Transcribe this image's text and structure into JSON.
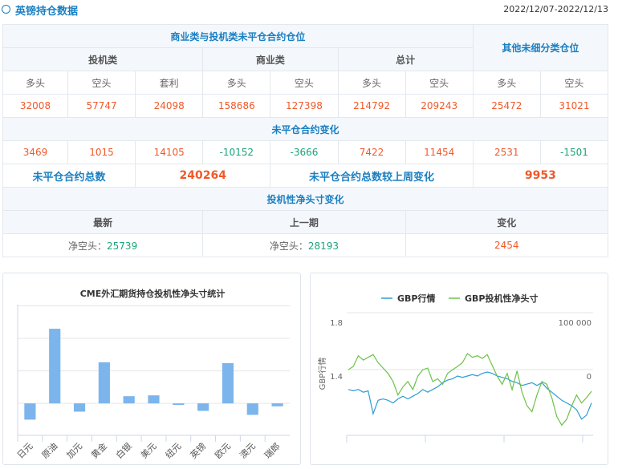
{
  "header": {
    "title": "英镑持仓数据",
    "date_range": "2022/12/07-2022/12/13",
    "icon": "circle-icon"
  },
  "table": {
    "group1": "商业类与投机类未平仓合约仓位",
    "group2": "其他未细分类仓位",
    "sub": [
      "投机类",
      "商业类",
      "总计"
    ],
    "cols": [
      "多头",
      "空头",
      "套利",
      "多头",
      "空头",
      "多头",
      "空头",
      "多头",
      "空头"
    ],
    "positions": [
      "32008",
      "57747",
      "24098",
      "158686",
      "127398",
      "214792",
      "209243",
      "25472",
      "31021"
    ],
    "change_title": "未平仓合约变化",
    "changes": [
      "3469",
      "1015",
      "14105",
      "-10152",
      "-3666",
      "7422",
      "11454",
      "2531",
      "-1501"
    ],
    "total_label": "未平仓合约总数",
    "total_value": "240264",
    "total_change_label": "未平仓合约总数较上周变化",
    "total_change_value": "9953",
    "net_title": "投机性净头寸变化",
    "net_cols": [
      "最新",
      "上一期",
      "变化"
    ],
    "net_values": [
      {
        "prefix": "净空头：",
        "value": "25739"
      },
      {
        "prefix": "净空头：",
        "value": "28193"
      },
      {
        "prefix": "",
        "value": "2454"
      }
    ]
  },
  "colors": {
    "accent": "#1a7fc1",
    "positive": "#f0592a",
    "negative": "#1aa37a",
    "bar": "#7cb5ec",
    "gbp_line": "#2f9bd6",
    "net_line": "#6cc24a"
  },
  "chart_data": [
    {
      "type": "bar",
      "title": "CME外汇期货持仓投机性净头寸统计",
      "categories": [
        "日元",
        "原油",
        "加元",
        "黄金",
        "白银",
        "美元",
        "纽元",
        "英镑",
        "欧元",
        "澳元",
        "瑞郎"
      ],
      "values": [
        -56000,
        257000,
        -28500,
        141500,
        24800,
        27600,
        -5500,
        -25739,
        138800,
        -39500,
        -10100
      ],
      "ylim": [
        -110000,
        340000
      ],
      "grid": true
    },
    {
      "type": "line",
      "legend": [
        "GBP行情",
        "GBP投机性净头寸"
      ],
      "legend_position": "top",
      "ylabel": "GBP行情",
      "left_ticks": [
        "1.8",
        "1.4"
      ],
      "right_ticks": [
        "100 000",
        "0"
      ],
      "left_ylim": [
        0.96,
        1.87
      ],
      "right_ylim": [
        -110000,
        118000
      ],
      "series": [
        {
          "name": "GBP行情",
          "axis": "left",
          "values": [
            1.3,
            1.29,
            1.3,
            1.28,
            1.29,
            1.12,
            1.22,
            1.23,
            1.22,
            1.2,
            1.23,
            1.25,
            1.23,
            1.25,
            1.27,
            1.3,
            1.28,
            1.3,
            1.32,
            1.35,
            1.37,
            1.38,
            1.4,
            1.39,
            1.4,
            1.41,
            1.4,
            1.42,
            1.43,
            1.42,
            1.4,
            1.39,
            1.38,
            1.36,
            1.35,
            1.33,
            1.34,
            1.35,
            1.33,
            1.35,
            1.31,
            1.28,
            1.25,
            1.22,
            1.2,
            1.18,
            1.15,
            1.08,
            1.11,
            1.2
          ]
        },
        {
          "name": "GBP投机性净头寸",
          "axis": "right",
          "values": [
            12000,
            18000,
            38000,
            30000,
            35000,
            40000,
            25000,
            15000,
            5000,
            -10000,
            -35000,
            -20000,
            -10000,
            -25000,
            0,
            12000,
            15000,
            -10000,
            -5000,
            -15000,
            5000,
            12000,
            18000,
            25000,
            42000,
            35000,
            38000,
            33000,
            40000,
            20000,
            0,
            -15000,
            5000,
            -25000,
            10000,
            -30000,
            -55000,
            -66000,
            -35000,
            -10000,
            -15000,
            -40000,
            -75000,
            -91000,
            -80000,
            -55000,
            -35000,
            -50000,
            -40000,
            -28000
          ]
        }
      ]
    }
  ]
}
